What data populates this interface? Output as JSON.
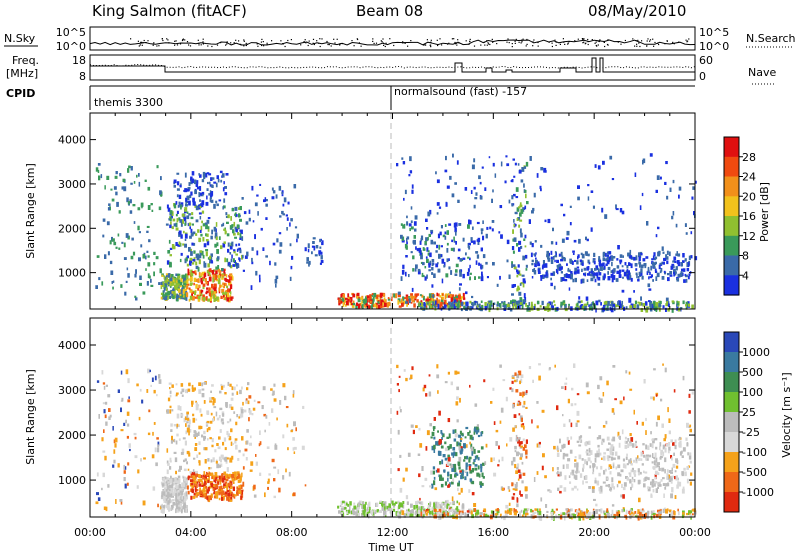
{
  "header": {
    "title": "King Salmon (fitACF)",
    "beam": "Beam 08",
    "date": "08/May/2010"
  },
  "top_panels": {
    "nsky_label": "N.Sky",
    "nsearch_label": "N.Search",
    "nsky_ticks": [
      "10^5",
      "10^0"
    ],
    "freq_label_1": "Freq.",
    "freq_label_2": "[MHz]",
    "freq_ticks": [
      "18",
      "8"
    ],
    "nave_label": "Nave",
    "nave_ticks": [
      "60",
      "0"
    ],
    "cpid_label": "CPID",
    "cpid_1": "themis 3300",
    "cpid_2": "normalsound (fast) -157"
  },
  "power_colorbar": {
    "label": "Power [dB]",
    "ticks": [
      "28",
      "24",
      "20",
      "16",
      "12",
      "8",
      "4"
    ],
    "colors": [
      "#e01010",
      "#f04a10",
      "#f2901a",
      "#f2c21c",
      "#90c030",
      "#3a9a5a",
      "#3a6aa8",
      "#1a30e0"
    ]
  },
  "velocity_colorbar": {
    "label": "Velocity [m s⁻¹]",
    "ticks": [
      "1000",
      "500",
      "100",
      "25",
      "-25",
      "-100",
      "-500",
      "-1000"
    ],
    "colors": [
      "#2a48b8",
      "#3a7aa0",
      "#3e8e52",
      "#70c030",
      "#bcbcbc",
      "#d8d8d8",
      "#f5a21a",
      "#ef6818",
      "#e02a10"
    ]
  },
  "chart_data": [
    {
      "type": "scatter",
      "panel": "power",
      "ylabel": "Slant Range [km]",
      "yticks": [
        "4000",
        "3000",
        "2000",
        "1000"
      ],
      "xticks": [
        "00:00",
        "04:00",
        "08:00",
        "12:00",
        "16:00",
        "20:00",
        "00:00"
      ],
      "x_range_hours": [
        0,
        24
      ],
      "y_range_km": [
        180,
        4600
      ],
      "clusters": [
        {
          "t0": 0.2,
          "t1": 2.8,
          "r0": 400,
          "r1": 3500,
          "n": 120,
          "c": [
            5,
            6
          ]
        },
        {
          "t0": 2.8,
          "t1": 3.8,
          "r0": 450,
          "r1": 1000,
          "n": 190,
          "c": [
            3,
            4,
            5,
            6
          ]
        },
        {
          "t0": 3.8,
          "t1": 5.6,
          "r0": 400,
          "r1": 1100,
          "n": 200,
          "c": [
            0,
            1,
            2,
            3,
            4
          ]
        },
        {
          "t0": 3.0,
          "t1": 6.0,
          "r0": 1100,
          "r1": 2600,
          "n": 260,
          "c": [
            4,
            5,
            6,
            7
          ]
        },
        {
          "t0": 3.3,
          "t1": 5.4,
          "r0": 2600,
          "r1": 3300,
          "n": 90,
          "c": [
            6,
            7
          ]
        },
        {
          "t0": 6.0,
          "t1": 8.2,
          "r0": 700,
          "r1": 3100,
          "n": 70,
          "c": [
            6,
            7
          ]
        },
        {
          "t0": 8.4,
          "t1": 9.2,
          "r0": 1200,
          "r1": 1800,
          "n": 25,
          "c": [
            6,
            7
          ]
        },
        {
          "t0": 9.8,
          "t1": 14.8,
          "r0": 260,
          "r1": 550,
          "n": 260,
          "c": [
            0,
            1,
            2,
            3,
            5
          ]
        },
        {
          "t0": 12.3,
          "t1": 15.6,
          "r0": 900,
          "r1": 2200,
          "n": 150,
          "c": [
            5,
            6,
            7
          ]
        },
        {
          "t0": 12.0,
          "t1": 24.0,
          "r0": 250,
          "r1": 3700,
          "n": 260,
          "c": [
            6,
            7
          ]
        },
        {
          "t0": 16.7,
          "t1": 17.3,
          "r0": 300,
          "r1": 3500,
          "n": 90,
          "c": [
            4,
            5,
            6,
            7
          ]
        },
        {
          "t0": 17.5,
          "t1": 23.8,
          "r0": 850,
          "r1": 1500,
          "n": 320,
          "c": [
            6,
            7
          ]
        },
        {
          "t0": 13.0,
          "t1": 24.0,
          "r0": 200,
          "r1": 380,
          "n": 300,
          "c": [
            4,
            5,
            6,
            7
          ]
        }
      ]
    },
    {
      "type": "scatter",
      "panel": "velocity",
      "ylabel": "Slant Range [km]",
      "yticks": [
        "4000",
        "3000",
        "2000",
        "1000"
      ],
      "xticks": [
        "00:00",
        "04:00",
        "08:00",
        "12:00",
        "16:00",
        "20:00",
        "00:00"
      ],
      "xlabel": "Time UT",
      "x_range_hours": [
        0,
        24
      ],
      "y_range_km": [
        180,
        4600
      ],
      "clusters": [
        {
          "t0": 0.2,
          "t1": 2.8,
          "r0": 400,
          "r1": 3500,
          "n": 100,
          "c": [
            0,
            4,
            5,
            6,
            7
          ]
        },
        {
          "t0": 2.8,
          "t1": 3.8,
          "r0": 350,
          "r1": 1100,
          "n": 230,
          "c": [
            4,
            5
          ]
        },
        {
          "t0": 3.8,
          "t1": 6.0,
          "r0": 600,
          "r1": 1200,
          "n": 260,
          "c": [
            6,
            7,
            8
          ]
        },
        {
          "t0": 3.0,
          "t1": 6.2,
          "r0": 1200,
          "r1": 3200,
          "n": 240,
          "c": [
            4,
            5,
            6
          ]
        },
        {
          "t0": 6.0,
          "t1": 8.6,
          "r0": 600,
          "r1": 3200,
          "n": 80,
          "c": [
            4,
            5,
            6,
            7
          ]
        },
        {
          "t0": 9.8,
          "t1": 14.8,
          "r0": 250,
          "r1": 550,
          "n": 250,
          "c": [
            3,
            4,
            5
          ]
        },
        {
          "t0": 13.5,
          "t1": 15.6,
          "r0": 900,
          "r1": 2200,
          "n": 160,
          "c": [
            1,
            2
          ]
        },
        {
          "t0": 12.0,
          "t1": 24.0,
          "r0": 250,
          "r1": 3600,
          "n": 320,
          "c": [
            4,
            5,
            6,
            8
          ]
        },
        {
          "t0": 16.7,
          "t1": 17.3,
          "r0": 300,
          "r1": 3500,
          "n": 80,
          "c": [
            4,
            6,
            7,
            8
          ]
        },
        {
          "t0": 18.5,
          "t1": 23.8,
          "r0": 800,
          "r1": 2000,
          "n": 320,
          "c": [
            4,
            5
          ]
        },
        {
          "t0": 13.0,
          "t1": 24.0,
          "r0": 200,
          "r1": 380,
          "n": 300,
          "c": [
            3,
            4,
            5,
            6,
            7
          ]
        }
      ]
    }
  ]
}
